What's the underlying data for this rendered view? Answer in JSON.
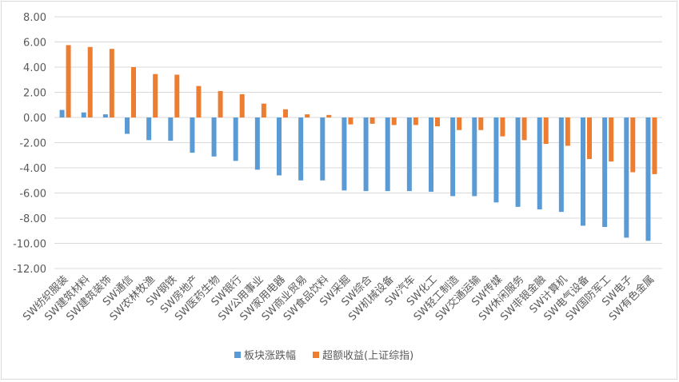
{
  "chart_data": {
    "type": "bar",
    "title": "",
    "xlabel": "",
    "ylabel": "",
    "ylim": [
      -12,
      8
    ],
    "yticks": [
      "8.00",
      "6.00",
      "4.00",
      "2.00",
      "0.00",
      "-2.00",
      "-4.00",
      "-6.00",
      "-8.00",
      "-10.00",
      "-12.00"
    ],
    "grid": true,
    "legend_position": "bottom",
    "categories": [
      "SW纺织服装",
      "SW建筑材料",
      "SW建筑装饰",
      "SW通信",
      "SW农林牧渔",
      "SW钢铁",
      "SW房地产",
      "SW医药生物",
      "SW银行",
      "SW公用事业",
      "SW家用电器",
      "SW商业贸易",
      "SW食品饮料",
      "SW采掘",
      "SW综合",
      "SW机械设备",
      "SW汽车",
      "SW化工",
      "SW轻工制造",
      "SW交通运输",
      "SW传媒",
      "SW休闲服务",
      "SW非银金融",
      "SW计算机",
      "SW电气设备",
      "SW国防军工",
      "SW电子",
      "SW有色金属"
    ],
    "series": [
      {
        "name": "板块涨跌幅",
        "color": "#5b9bd5",
        "values": [
          0.6,
          0.4,
          0.25,
          -1.3,
          -1.8,
          -1.85,
          -2.8,
          -3.1,
          -3.45,
          -4.15,
          -4.6,
          -5.0,
          -5.0,
          -5.8,
          -5.85,
          -5.85,
          -5.85,
          -5.9,
          -6.25,
          -6.25,
          -6.75,
          -7.1,
          -7.3,
          -7.5,
          -8.6,
          -8.7,
          -9.55,
          -9.8
        ]
      },
      {
        "name": "超额收益(上证综指)",
        "color": "#ed7d31",
        "values": [
          5.75,
          5.6,
          5.45,
          4.0,
          3.45,
          3.4,
          2.5,
          2.1,
          1.85,
          1.1,
          0.65,
          0.25,
          0.2,
          -0.55,
          -0.5,
          -0.6,
          -0.6,
          -0.7,
          -1.0,
          -1.0,
          -1.5,
          -1.8,
          -2.1,
          -2.25,
          -3.3,
          -3.5,
          -4.35,
          -4.5
        ]
      }
    ]
  }
}
